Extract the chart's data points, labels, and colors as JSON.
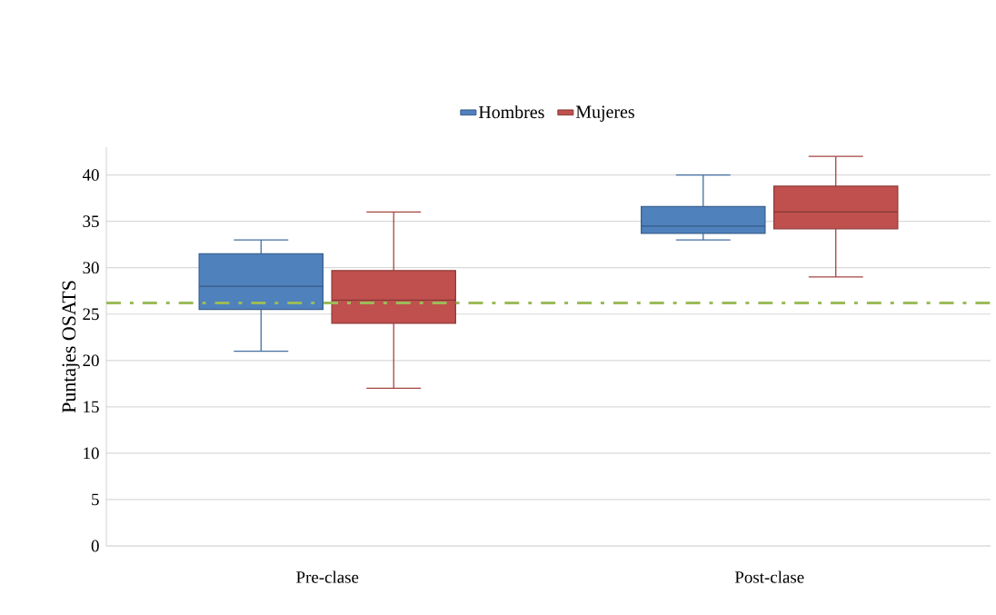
{
  "chart_data": {
    "type": "box",
    "ylabel": "Puntajes OSATS",
    "categories": [
      "Pre-clase",
      "Post-clase"
    ],
    "series": [
      {
        "name": "Hombres",
        "color": "#4f81bd",
        "boxes": [
          {
            "low": 21,
            "q1": 25.5,
            "median": 28,
            "q3": 31.5,
            "high": 33
          },
          {
            "low": 33,
            "q1": 33.7,
            "median": 34.5,
            "q3": 36.6,
            "high": 40
          }
        ]
      },
      {
        "name": "Mujeres",
        "color": "#c0504d",
        "boxes": [
          {
            "low": 17,
            "q1": 24,
            "median": 26.5,
            "q3": 29.7,
            "high": 36
          },
          {
            "low": 29,
            "q1": 34.2,
            "median": 36,
            "q3": 38.8,
            "high": 42
          }
        ]
      }
    ],
    "ylim": [
      0,
      43
    ],
    "yticks": [
      0,
      5,
      10,
      15,
      20,
      25,
      30,
      35,
      40
    ],
    "grid": "y",
    "legend": "top",
    "ref_lines": [
      {
        "axis": "y",
        "value": 26.2,
        "color": "#9bbb59",
        "line_style": "dashdot"
      }
    ]
  }
}
